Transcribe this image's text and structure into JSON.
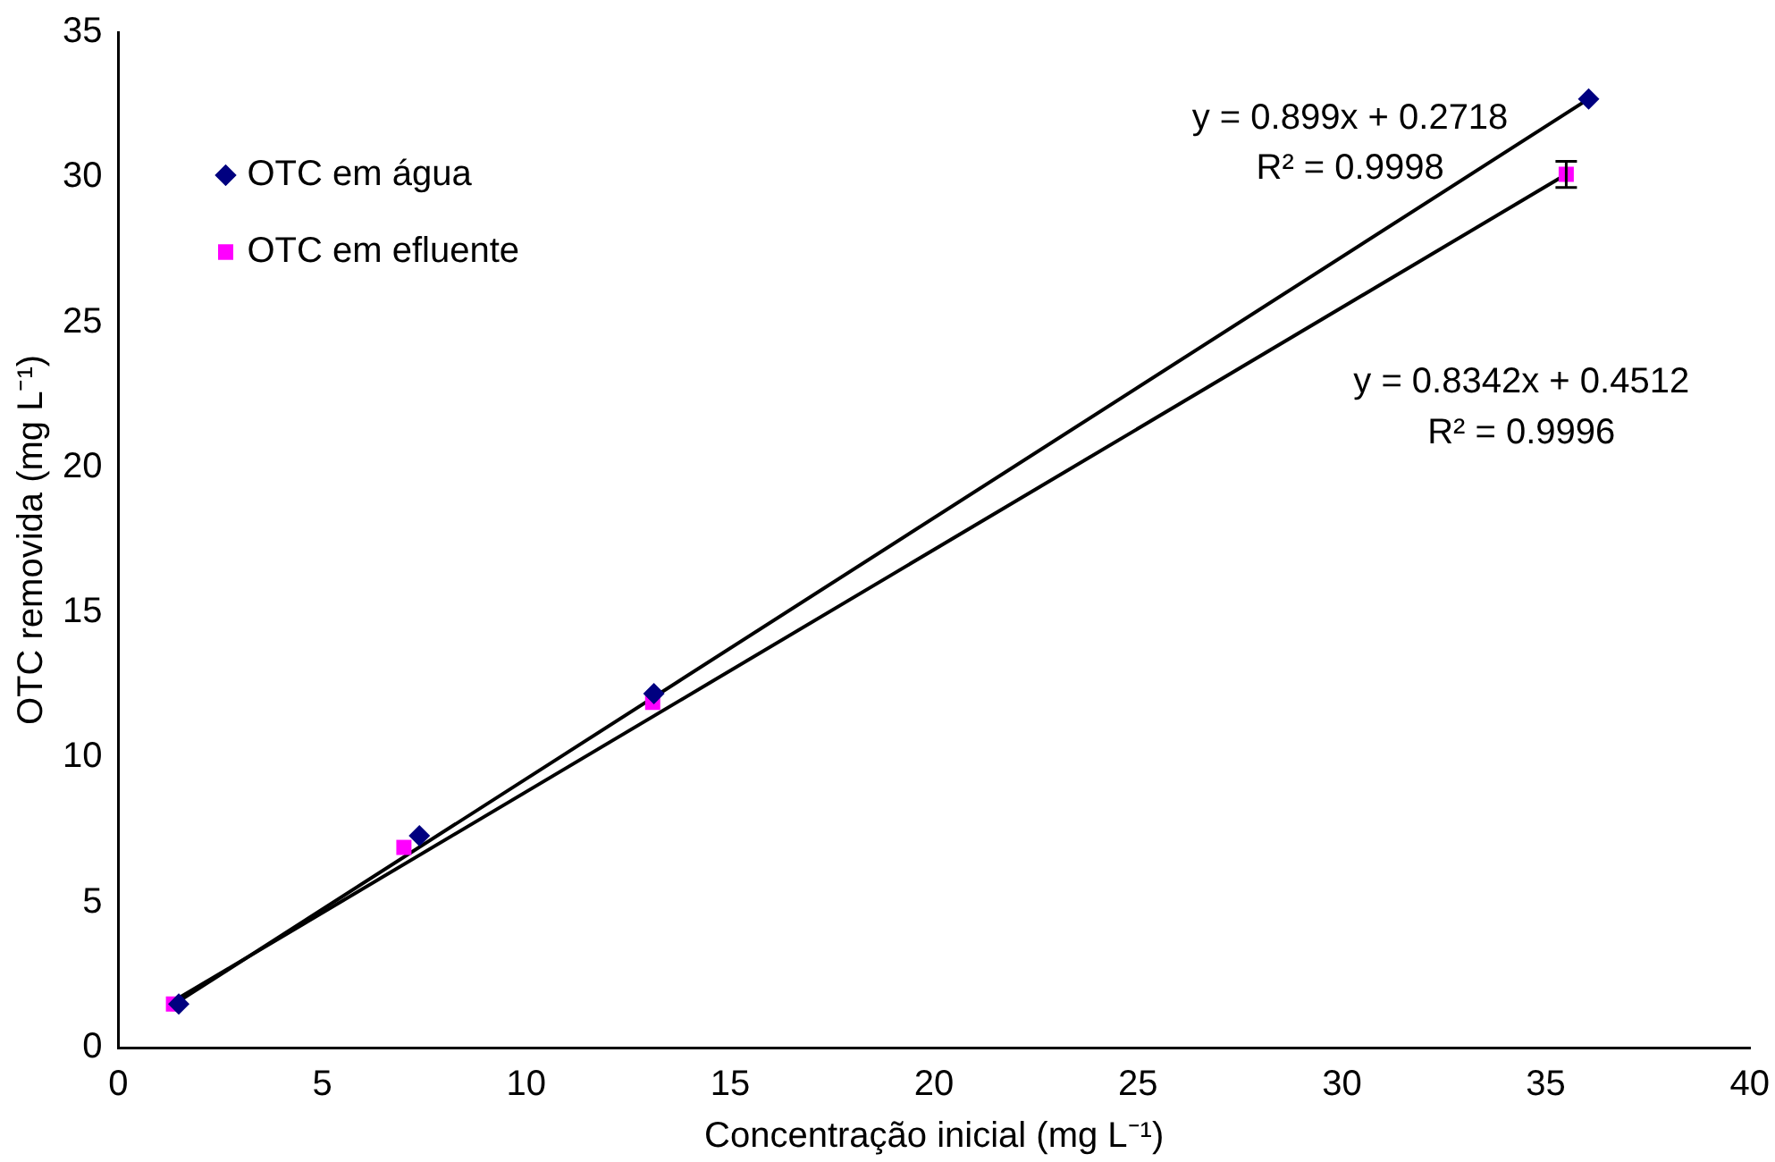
{
  "chart_data": {
    "type": "scatter",
    "xlabel": "Concentração inicial (mg L⁻¹)",
    "ylabel": "OTC removida (mg L⁻¹)",
    "xlim": [
      0,
      40
    ],
    "xticks": [
      0,
      5,
      10,
      15,
      20,
      25,
      30,
      35,
      40
    ],
    "ylim": [
      0,
      35
    ],
    "yticks": [
      0,
      5,
      10,
      15,
      20,
      25,
      30,
      35
    ],
    "grid": false,
    "legend": "top left",
    "series": [
      {
        "name": "OTC em água",
        "color": "#000080",
        "marker": "diamond",
        "x": [
          1.48,
          7.38,
          13.13,
          36.05
        ],
        "values": [
          1.5,
          7.3,
          12.2,
          32.7
        ]
      },
      {
        "name": "OTC em efluente",
        "color": "#ff00ff",
        "marker": "square",
        "x": [
          1.35,
          7.0,
          13.1,
          35.5
        ],
        "values": [
          1.5,
          6.9,
          11.9,
          30.1
        ],
        "errors": [
          null,
          null,
          null,
          0.45
        ]
      },
      {
        "type": "line",
        "color": "#000000",
        "x": [
          1.48,
          36.05
        ],
        "values": [
          1.6,
          32.7
        ]
      },
      {
        "type": "line",
        "color": "#000000",
        "x": [
          1.35,
          35.5
        ],
        "values": [
          1.6,
          30.1
        ]
      }
    ],
    "annotations": [
      "y = 0.899x + 0.2718",
      "R² = 0.9998",
      "y = 0.8342x + 0.4512",
      "R² = 0.9996"
    ]
  }
}
